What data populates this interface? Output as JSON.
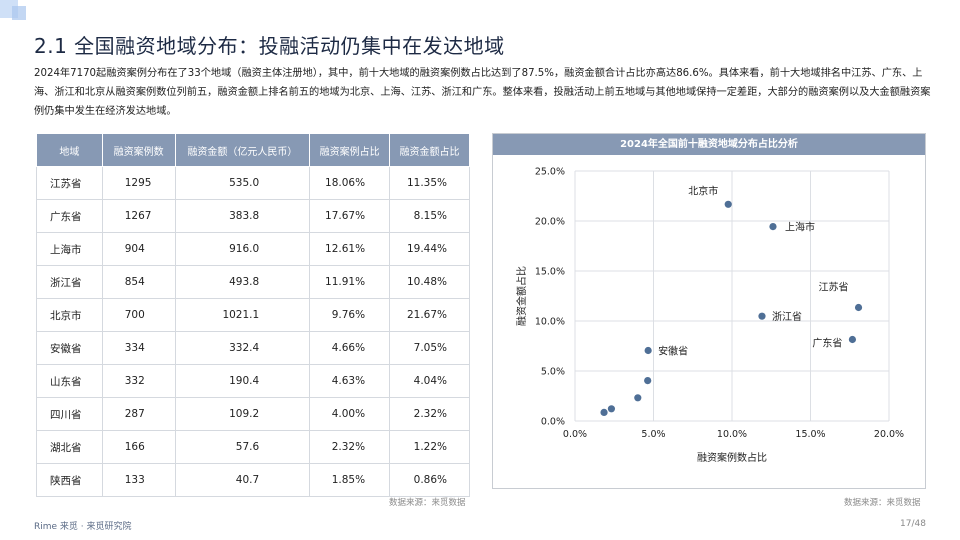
{
  "page": {
    "title": "2.1 全国融资地域分布：投融活动仍集中在发达地域",
    "intro": "2024年7170起融资案例分布在了33个地域（融资主体注册地），其中，前十大地域的融资案例数占比达到了87.5%，融资金额合计占比亦高达86.6%。具体来看，前十大地域排名中江苏、广东、上海、浙江和北京从融资案例数位列前五，融资金额上排名前五的地域为北京、上海、江苏、浙江和广东。整体来看，投融活动上前五地域与其他地域保持一定差距，大部分的融资案例以及大金额融资案例仍集中发生在经济发达地域。",
    "source_left": "数据来源：来觅数据",
    "source_right": "数据来源：来觅数据",
    "footer_logo": "Rime 来觅 · 来觅研究院",
    "page_number": "17/48"
  },
  "table": {
    "headers": [
      "地域",
      "融资案例数",
      "融资金额（亿元人民币）",
      "融资案例占比",
      "融资金额占比"
    ],
    "rows": [
      [
        "江苏省",
        "1295",
        "535.0",
        "18.06%",
        "11.35%"
      ],
      [
        "广东省",
        "1267",
        "383.8",
        "17.67%",
        "8.15%"
      ],
      [
        "上海市",
        "904",
        "916.0",
        "12.61%",
        "19.44%"
      ],
      [
        "浙江省",
        "854",
        "493.8",
        "11.91%",
        "10.48%"
      ],
      [
        "北京市",
        "700",
        "1021.1",
        "9.76%",
        "21.67%"
      ],
      [
        "安徽省",
        "334",
        "332.4",
        "4.66%",
        "7.05%"
      ],
      [
        "山东省",
        "332",
        "190.4",
        "4.63%",
        "4.04%"
      ],
      [
        "四川省",
        "287",
        "109.2",
        "4.00%",
        "2.32%"
      ],
      [
        "湖北省",
        "166",
        "57.6",
        "2.32%",
        "1.22%"
      ],
      [
        "陕西省",
        "133",
        "40.7",
        "1.85%",
        "0.86%"
      ]
    ]
  },
  "chart_data": {
    "type": "scatter",
    "title": "2024年全国前十融资地域分布占比分析",
    "xlabel": "融资案例数占比",
    "ylabel": "融资金额占比",
    "xlim": [
      0,
      20
    ],
    "ylim": [
      0,
      25
    ],
    "x_ticks": [
      "0.0%",
      "5.0%",
      "10.0%",
      "15.0%",
      "20.0%"
    ],
    "y_ticks": [
      "0.0%",
      "5.0%",
      "10.0%",
      "15.0%",
      "20.0%",
      "25.0%"
    ],
    "grid": true,
    "point_color": "#4f6f96",
    "points": [
      {
        "label": "江苏省",
        "x": 18.06,
        "y": 11.35
      },
      {
        "label": "广东省",
        "x": 17.67,
        "y": 8.15
      },
      {
        "label": "上海市",
        "x": 12.61,
        "y": 19.44
      },
      {
        "label": "浙江省",
        "x": 11.91,
        "y": 10.48
      },
      {
        "label": "北京市",
        "x": 9.76,
        "y": 21.67
      },
      {
        "label": "安徽省",
        "x": 4.66,
        "y": 7.05
      },
      {
        "label": "",
        "x": 4.63,
        "y": 4.04
      },
      {
        "label": "",
        "x": 4.0,
        "y": 2.32
      },
      {
        "label": "",
        "x": 2.32,
        "y": 1.22
      },
      {
        "label": "",
        "x": 1.85,
        "y": 0.86
      }
    ]
  }
}
